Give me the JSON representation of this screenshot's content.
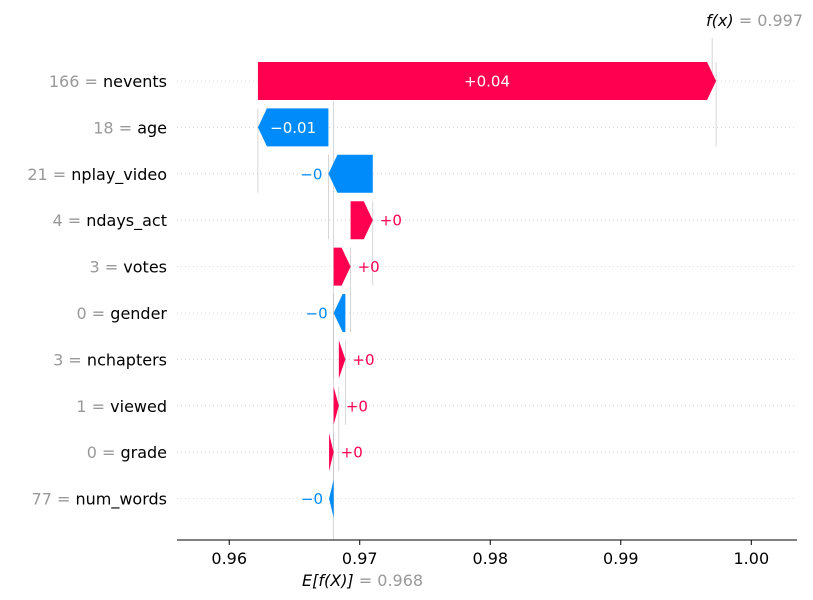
{
  "chart_data": {
    "type": "waterfall",
    "base_value": 0.968,
    "output_value": 0.997,
    "base_label_math": "E[f(X)]",
    "base_label_value": "= 0.968",
    "output_label_math": "f(x)",
    "output_label_value": "= 0.997",
    "xlim": [
      0.956,
      1.0035
    ],
    "ticks": [
      "0.96",
      "0.97",
      "0.98",
      "0.99",
      "1.00"
    ],
    "tick_values": [
      0.96,
      0.97,
      0.98,
      0.99,
      1.0
    ],
    "features": [
      {
        "value_text": "166",
        "name": "nevents",
        "start": 0.9622,
        "end": 0.9973,
        "label": "+0.04"
      },
      {
        "value_text": "18",
        "name": "age",
        "start": 0.9676,
        "end": 0.9622,
        "label": "−0.01"
      },
      {
        "value_text": "21",
        "name": "nplay_video",
        "start": 0.971,
        "end": 0.9676,
        "label": "−0"
      },
      {
        "value_text": "4",
        "name": "ndays_act",
        "start": 0.9693,
        "end": 0.971,
        "label": "+0"
      },
      {
        "value_text": "3",
        "name": "votes",
        "start": 0.968,
        "end": 0.9693,
        "label": "+0"
      },
      {
        "value_text": "0",
        "name": "gender",
        "start": 0.9689,
        "end": 0.968,
        "label": "−0"
      },
      {
        "value_text": "3",
        "name": "nchapters",
        "start": 0.9684,
        "end": 0.9689,
        "label": "+0"
      },
      {
        "value_text": "1",
        "name": "viewed",
        "start": 0.968,
        "end": 0.9684,
        "label": "+0"
      },
      {
        "value_text": "0",
        "name": "grade",
        "start": 0.96765,
        "end": 0.968,
        "label": "+0"
      },
      {
        "value_text": "77",
        "name": "num_words",
        "start": 0.968,
        "end": 0.96765,
        "label": "−0"
      }
    ],
    "colors": {
      "positive": "#ff0051",
      "negative": "#008bfb",
      "muted": "#999999",
      "grid": "#cccccc"
    }
  }
}
